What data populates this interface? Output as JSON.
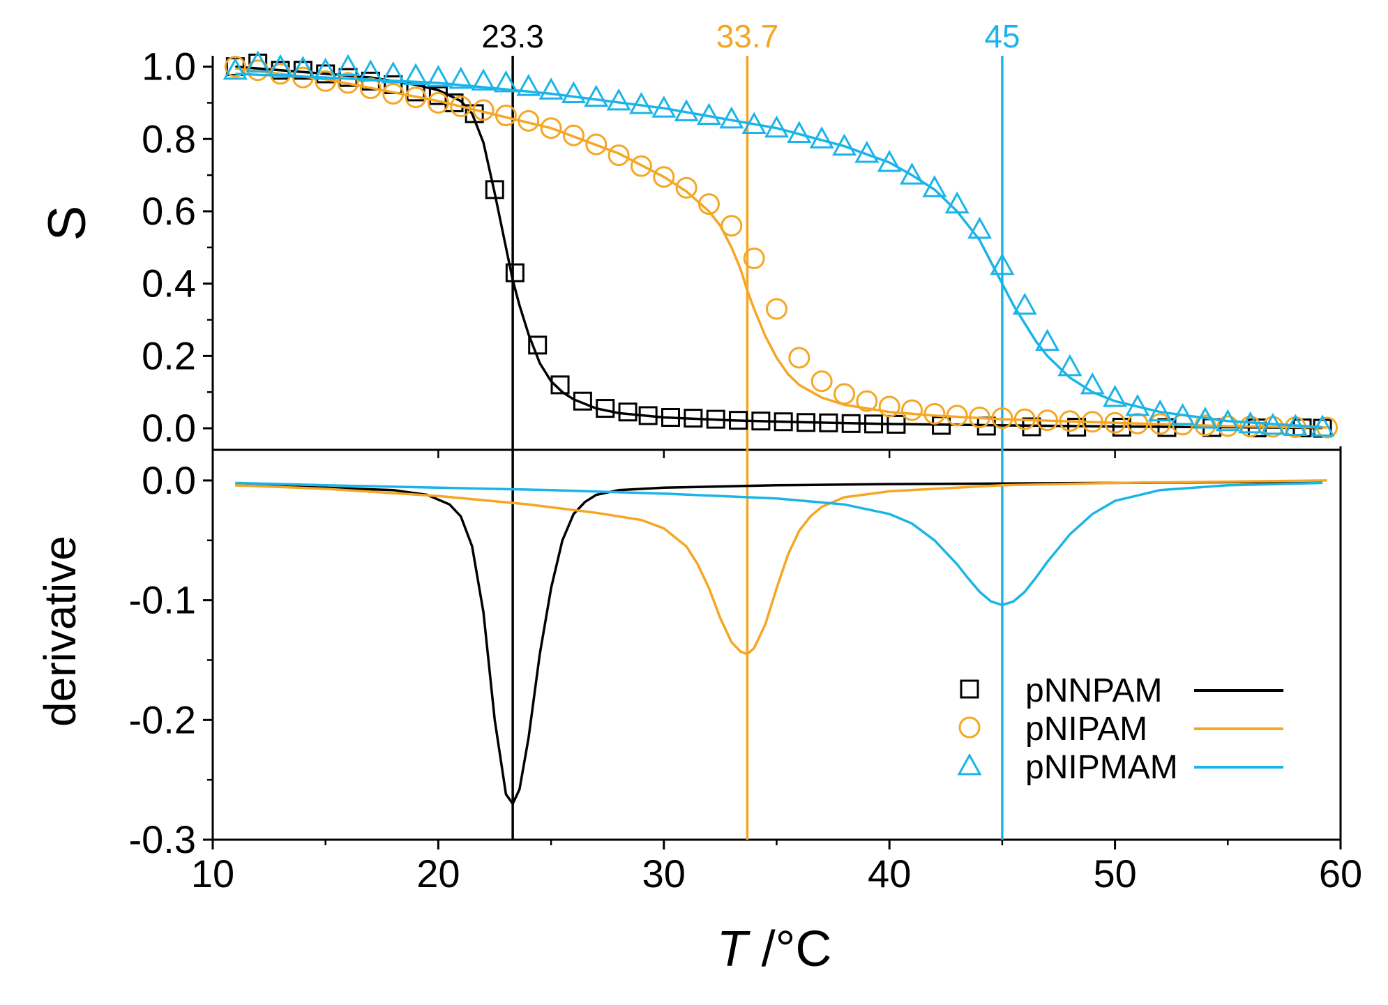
{
  "chart_data": {
    "type": "line",
    "xlabel": {
      "italic": "T",
      "rest": " /°C"
    },
    "xlim": [
      10,
      60
    ],
    "xticks": [
      10,
      20,
      30,
      40,
      50,
      60
    ],
    "panels": [
      {
        "id": "top",
        "ylabel": "S",
        "ylim": [
          -0.05,
          1.03
        ],
        "yticks": [
          "0.0",
          "0.2",
          "0.4",
          "0.6",
          "0.8",
          "1.0"
        ],
        "yminor": [
          0.1,
          0.3,
          0.5,
          0.7,
          0.9
        ]
      },
      {
        "id": "bottom",
        "ylabel": "derivative",
        "ylim": [
          -0.3,
          0.025
        ],
        "yticks": [
          "-0.3",
          "-0.2",
          "-0.1",
          "0.0"
        ],
        "yminor": [
          -0.25,
          -0.15,
          -0.05
        ]
      }
    ],
    "vlines": [
      {
        "x": 23.3,
        "label": "23.3",
        "color": "#000000"
      },
      {
        "x": 33.7,
        "label": "33.7",
        "color": "#f5a623"
      },
      {
        "x": 45,
        "label": "45",
        "color": "#1ab4e8"
      }
    ],
    "legend": {
      "placement": "bottom-right of lower panel",
      "entries": [
        "pNNPAM",
        "pNIPAM",
        "pNIPMAM"
      ]
    },
    "series": [
      {
        "name": "pNNPAM",
        "color": "#000000",
        "marker": "square",
        "points": {
          "x": [
            11,
            12,
            13,
            14,
            15,
            16,
            17,
            18,
            19,
            20,
            20.7,
            21.6,
            22.5,
            23.4,
            24.4,
            25.4,
            26.4,
            27.4,
            28.4,
            29.3,
            30.3,
            31.3,
            32.3,
            33.3,
            34.3,
            35.3,
            36.3,
            37.3,
            38.3,
            39.3,
            40.3,
            42.3,
            44.3,
            46.3,
            48.3,
            50.3,
            52.3,
            54.3,
            56.3,
            58.3,
            59.2
          ],
          "y": [
            1.0,
            1.01,
            0.99,
            0.99,
            0.98,
            0.97,
            0.96,
            0.95,
            0.93,
            0.92,
            0.9,
            0.87,
            0.66,
            0.43,
            0.23,
            0.12,
            0.075,
            0.055,
            0.045,
            0.035,
            0.03,
            0.028,
            0.025,
            0.022,
            0.02,
            0.018,
            0.016,
            0.015,
            0.013,
            0.012,
            0.011,
            0.008,
            0.006,
            0.004,
            0.003,
            0.003,
            0.002,
            0.002,
            0.001,
            0.001,
            0.0
          ]
        },
        "fit": {
          "x": [
            11,
            14,
            17,
            19,
            20,
            21,
            21.5,
            22,
            22.5,
            23,
            23.3,
            23.6,
            24,
            24.5,
            25,
            25.5,
            26,
            27,
            28,
            30,
            33,
            36,
            40,
            45,
            50,
            55,
            59.2
          ],
          "y": [
            1.0,
            0.985,
            0.97,
            0.95,
            0.935,
            0.905,
            0.87,
            0.79,
            0.65,
            0.5,
            0.41,
            0.34,
            0.26,
            0.18,
            0.13,
            0.1,
            0.08,
            0.055,
            0.042,
            0.03,
            0.022,
            0.017,
            0.012,
            0.008,
            0.005,
            0.003,
            0.001
          ]
        },
        "derivative": {
          "x": [
            11,
            15,
            18,
            19.5,
            20.5,
            21,
            21.5,
            22,
            22.5,
            23,
            23.3,
            23.6,
            24,
            24.5,
            25,
            25.5,
            26,
            26.5,
            27,
            28,
            30,
            35,
            40,
            50,
            59.2
          ],
          "y": [
            -0.004,
            -0.006,
            -0.008,
            -0.012,
            -0.02,
            -0.03,
            -0.055,
            -0.11,
            -0.2,
            -0.262,
            -0.27,
            -0.258,
            -0.215,
            -0.145,
            -0.09,
            -0.05,
            -0.028,
            -0.018,
            -0.012,
            -0.008,
            -0.006,
            -0.004,
            -0.003,
            -0.002,
            -0.001
          ]
        }
      },
      {
        "name": "pNIPAM",
        "color": "#f5a623",
        "marker": "circle",
        "points": {
          "x": [
            11,
            12,
            13,
            14,
            15,
            16,
            17,
            18,
            19,
            20,
            21,
            22,
            23,
            24,
            25,
            26,
            27,
            28,
            29,
            30,
            31,
            32,
            33,
            34,
            35,
            36,
            37,
            38,
            39,
            40,
            41,
            42,
            43,
            44,
            45,
            46,
            47,
            48,
            49,
            50,
            51,
            52,
            53,
            54,
            55,
            56,
            57,
            58,
            59.4
          ],
          "y": [
            1.0,
            0.99,
            0.98,
            0.97,
            0.96,
            0.955,
            0.94,
            0.925,
            0.915,
            0.9,
            0.89,
            0.88,
            0.865,
            0.85,
            0.83,
            0.81,
            0.785,
            0.755,
            0.725,
            0.695,
            0.665,
            0.62,
            0.56,
            0.47,
            0.33,
            0.195,
            0.13,
            0.095,
            0.075,
            0.06,
            0.05,
            0.04,
            0.035,
            0.03,
            0.028,
            0.025,
            0.022,
            0.02,
            0.018,
            0.015,
            0.013,
            0.012,
            0.01,
            0.008,
            0.006,
            0.005,
            0.004,
            0.003,
            0.002
          ]
        },
        "fit": {
          "x": [
            11,
            15,
            20,
            25,
            28,
            30,
            31,
            32,
            32.5,
            33,
            33.4,
            33.7,
            34,
            34.5,
            35,
            35.5,
            36,
            37,
            38,
            40,
            42,
            45,
            50,
            55,
            59.4
          ],
          "y": [
            0.995,
            0.965,
            0.905,
            0.83,
            0.76,
            0.695,
            0.655,
            0.6,
            0.56,
            0.5,
            0.44,
            0.38,
            0.33,
            0.255,
            0.195,
            0.15,
            0.12,
            0.085,
            0.065,
            0.045,
            0.035,
            0.025,
            0.015,
            0.006,
            0.002
          ]
        },
        "derivative": {
          "x": [
            11,
            15,
            20,
            24,
            27,
            29,
            30,
            31,
            31.5,
            32,
            32.5,
            33,
            33.4,
            33.7,
            34,
            34.5,
            35,
            35.5,
            36,
            36.5,
            37,
            38,
            40,
            45,
            50,
            55,
            59.4
          ],
          "y": [
            -0.004,
            -0.007,
            -0.013,
            -0.02,
            -0.027,
            -0.033,
            -0.04,
            -0.055,
            -0.07,
            -0.09,
            -0.115,
            -0.135,
            -0.143,
            -0.145,
            -0.14,
            -0.12,
            -0.09,
            -0.062,
            -0.042,
            -0.03,
            -0.022,
            -0.014,
            -0.009,
            -0.004,
            -0.002,
            -0.001,
            0.0
          ]
        }
      },
      {
        "name": "pNIPMAM",
        "color": "#1ab4e8",
        "marker": "triangle",
        "points": {
          "x": [
            11,
            12,
            13,
            14,
            15,
            16,
            17,
            18,
            19,
            20,
            21,
            22,
            23,
            24,
            25,
            26,
            27,
            28,
            29,
            30,
            31,
            32,
            33,
            34,
            35,
            36,
            37,
            38,
            39,
            40,
            41,
            42,
            43,
            44,
            45,
            46,
            47,
            48,
            49,
            50,
            51,
            52,
            53,
            54,
            55,
            56,
            57,
            58,
            59.2
          ],
          "y": [
            0.99,
            1.01,
            1.0,
            0.995,
            0.99,
            1.0,
            0.985,
            0.98,
            0.975,
            0.97,
            0.965,
            0.96,
            0.955,
            0.945,
            0.935,
            0.925,
            0.915,
            0.905,
            0.895,
            0.885,
            0.875,
            0.865,
            0.855,
            0.84,
            0.83,
            0.815,
            0.8,
            0.78,
            0.76,
            0.735,
            0.7,
            0.665,
            0.62,
            0.55,
            0.45,
            0.34,
            0.24,
            0.17,
            0.12,
            0.085,
            0.06,
            0.045,
            0.035,
            0.025,
            0.018,
            0.012,
            0.008,
            0.005,
            0.003
          ]
        },
        "fit": {
          "x": [
            11,
            15,
            20,
            25,
            30,
            35,
            38,
            40,
            41,
            42,
            43,
            44,
            44.5,
            45,
            45.5,
            46,
            46.5,
            47,
            48,
            49,
            50,
            52,
            55,
            59.2
          ],
          "y": [
            0.98,
            0.97,
            0.955,
            0.925,
            0.885,
            0.83,
            0.78,
            0.735,
            0.7,
            0.66,
            0.6,
            0.52,
            0.46,
            0.4,
            0.34,
            0.29,
            0.24,
            0.2,
            0.14,
            0.1,
            0.075,
            0.045,
            0.02,
            0.003
          ]
        },
        "derivative": {
          "x": [
            11,
            15,
            20,
            25,
            30,
            35,
            38,
            40,
            41,
            42,
            43,
            43.5,
            44,
            44.5,
            45,
            45.5,
            46,
            46.5,
            47,
            48,
            49,
            50,
            52,
            55,
            59.2
          ],
          "y": [
            -0.002,
            -0.004,
            -0.006,
            -0.008,
            -0.011,
            -0.015,
            -0.02,
            -0.028,
            -0.036,
            -0.05,
            -0.07,
            -0.082,
            -0.093,
            -0.101,
            -0.104,
            -0.101,
            -0.093,
            -0.081,
            -0.068,
            -0.045,
            -0.028,
            -0.017,
            -0.008,
            -0.004,
            -0.002
          ]
        }
      }
    ]
  }
}
